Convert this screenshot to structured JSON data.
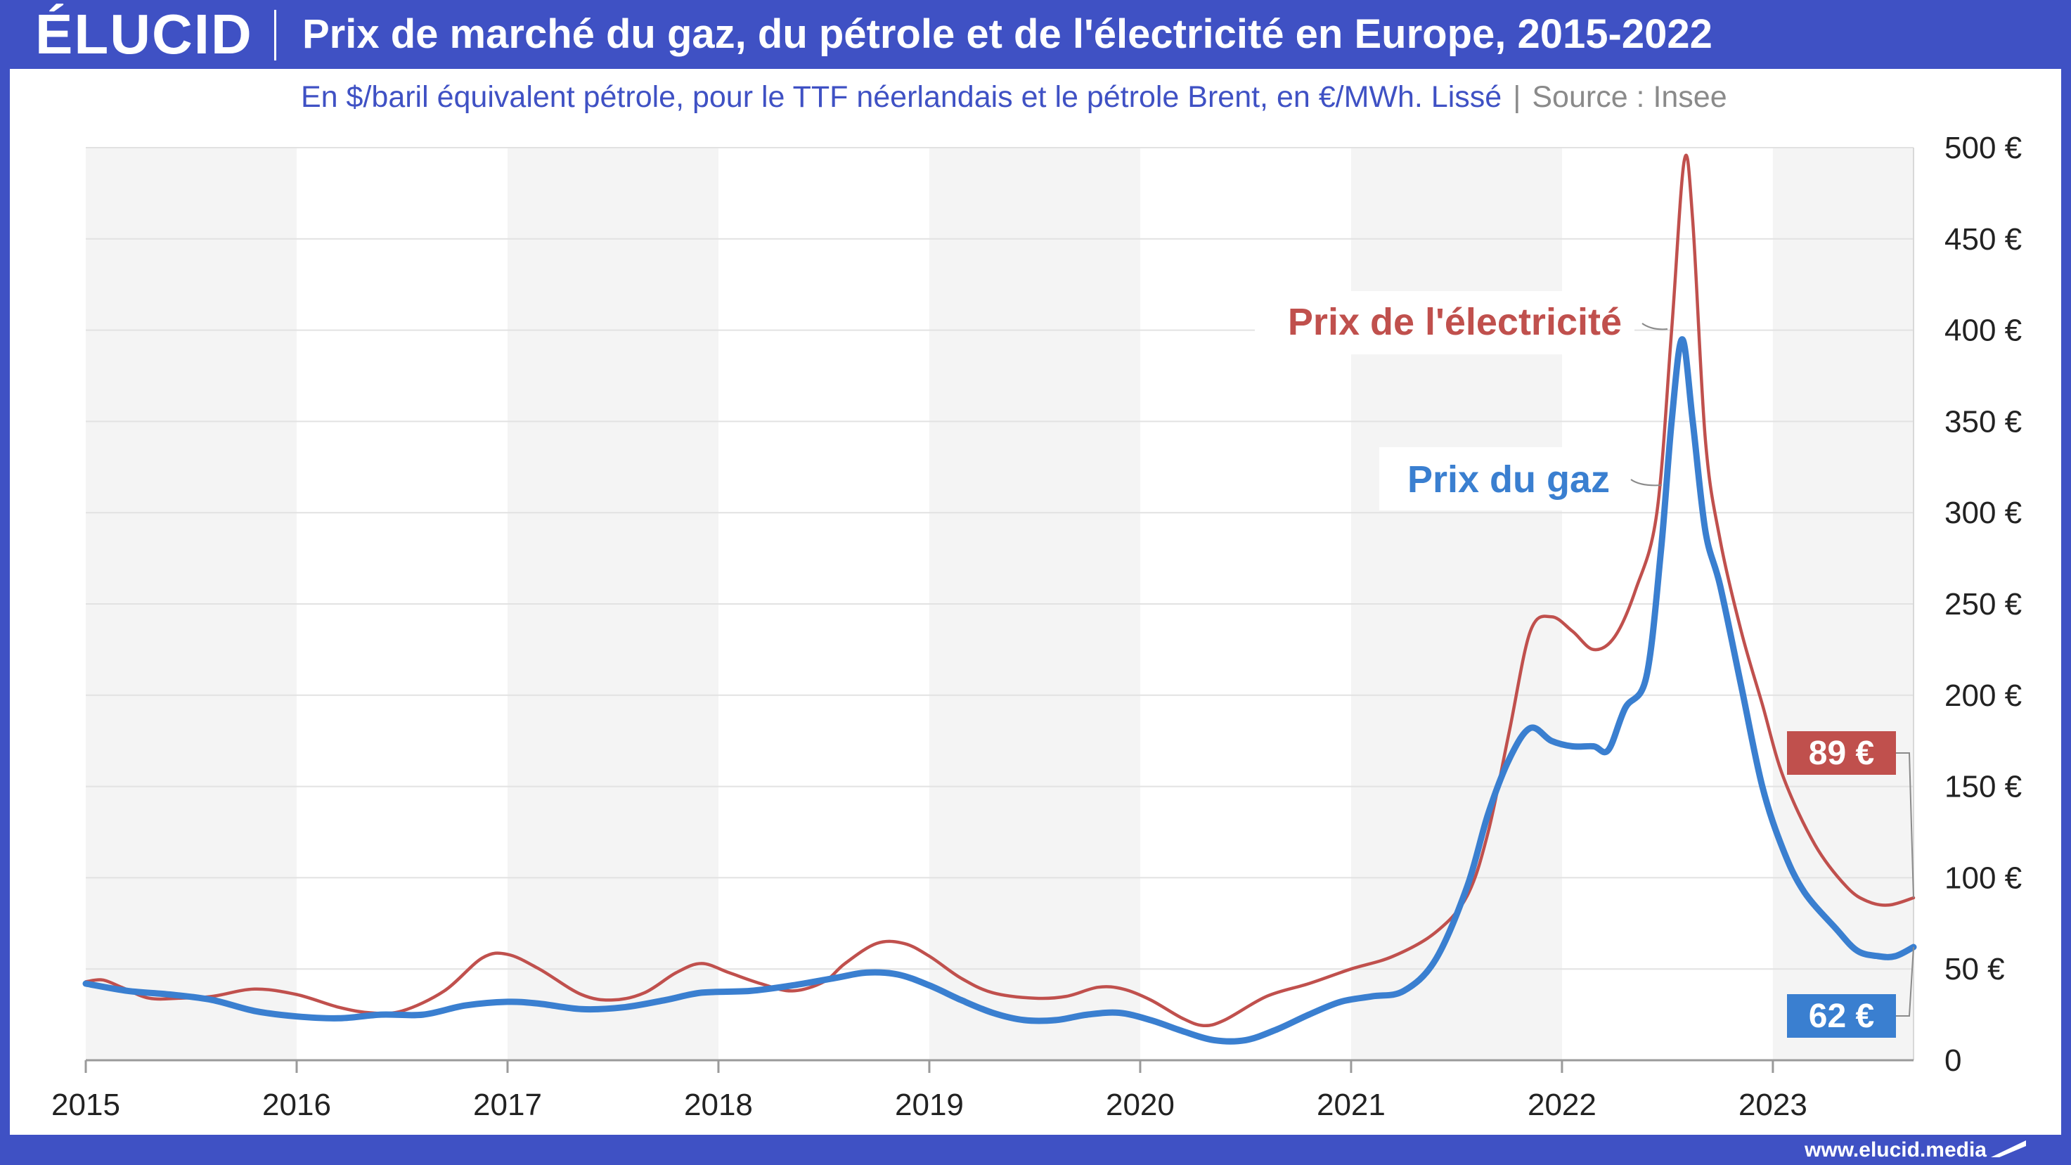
{
  "header": {
    "logo": "ÉLUCID",
    "title": "Prix de marché du gaz, du pétrole et de l'électricité en Europe, 2015-2022"
  },
  "subtitle": {
    "text": "En $/baril équivalent pétrole, pour le TTF néerlandais et le pétrole Brent, en €/MWh. Lissé",
    "separator": "|",
    "source": "Source : Insee"
  },
  "footer": {
    "url": "www.elucid.media"
  },
  "colors": {
    "brand": "#3f51c4",
    "electricity": "#c0504d",
    "gas": "#3a7fd0",
    "band": "#f4f4f4",
    "grid": "#e2e2e2"
  },
  "chart_data": {
    "type": "line",
    "title": "Prix de marché du gaz, du pétrole et de l'électricité en Europe, 2015-2022",
    "subtitle": "En $/baril équivalent pétrole, pour le TTF néerlandais et le pétrole Brent, en €/MWh. Lissé",
    "xlabel": "",
    "ylabel": "",
    "x_ticks": [
      "2015",
      "2016",
      "2017",
      "2018",
      "2019",
      "2020",
      "2021",
      "2022",
      "2023"
    ],
    "y_ticks": [
      "500 €",
      "450 €",
      "400 €",
      "350 €",
      "300 €",
      "250 €",
      "200 €",
      "150 €",
      "100 €",
      "50 €",
      "0"
    ],
    "xlim": [
      2015.0,
      2023.667
    ],
    "ylim": [
      0,
      500
    ],
    "grid": "horizontal",
    "shaded_years": [
      2015,
      2017,
      2019,
      2021,
      2023
    ],
    "series": [
      {
        "name": "Prix de l'électricité",
        "end_value_label": "89 €",
        "points": [
          [
            2015.0,
            43
          ],
          [
            2015.08,
            44
          ],
          [
            2015.17,
            40
          ],
          [
            2015.3,
            34
          ],
          [
            2015.45,
            34
          ],
          [
            2015.6,
            35
          ],
          [
            2015.8,
            39
          ],
          [
            2016.0,
            36
          ],
          [
            2016.2,
            29
          ],
          [
            2016.35,
            26
          ],
          [
            2016.5,
            27
          ],
          [
            2016.7,
            38
          ],
          [
            2016.88,
            56
          ],
          [
            2017.0,
            58
          ],
          [
            2017.15,
            50
          ],
          [
            2017.35,
            36
          ],
          [
            2017.5,
            33
          ],
          [
            2017.65,
            37
          ],
          [
            2017.8,
            48
          ],
          [
            2017.92,
            53
          ],
          [
            2018.05,
            48
          ],
          [
            2018.2,
            42
          ],
          [
            2018.35,
            38
          ],
          [
            2018.5,
            43
          ],
          [
            2018.6,
            53
          ],
          [
            2018.75,
            64
          ],
          [
            2018.88,
            64
          ],
          [
            2019.0,
            57
          ],
          [
            2019.15,
            45
          ],
          [
            2019.3,
            37
          ],
          [
            2019.5,
            34
          ],
          [
            2019.65,
            35
          ],
          [
            2019.8,
            40
          ],
          [
            2019.92,
            39
          ],
          [
            2020.05,
            33
          ],
          [
            2020.2,
            23
          ],
          [
            2020.3,
            19
          ],
          [
            2020.4,
            22
          ],
          [
            2020.6,
            35
          ],
          [
            2020.8,
            42
          ],
          [
            2021.0,
            50
          ],
          [
            2021.2,
            57
          ],
          [
            2021.4,
            70
          ],
          [
            2021.55,
            90
          ],
          [
            2021.65,
            125
          ],
          [
            2021.75,
            180
          ],
          [
            2021.85,
            235
          ],
          [
            2021.95,
            243
          ],
          [
            2022.05,
            235
          ],
          [
            2022.15,
            225
          ],
          [
            2022.25,
            232
          ],
          [
            2022.35,
            258
          ],
          [
            2022.45,
            300
          ],
          [
            2022.52,
            400
          ],
          [
            2022.58,
            493
          ],
          [
            2022.62,
            460
          ],
          [
            2022.68,
            340
          ],
          [
            2022.75,
            285
          ],
          [
            2022.85,
            235
          ],
          [
            2022.95,
            195
          ],
          [
            2023.05,
            155
          ],
          [
            2023.2,
            118
          ],
          [
            2023.35,
            95
          ],
          [
            2023.45,
            87
          ],
          [
            2023.55,
            85
          ],
          [
            2023.667,
            89
          ]
        ]
      },
      {
        "name": "Prix du gaz",
        "end_value_label": "62 €",
        "points": [
          [
            2015.0,
            42
          ],
          [
            2015.2,
            38
          ],
          [
            2015.4,
            36
          ],
          [
            2015.6,
            33
          ],
          [
            2015.8,
            27
          ],
          [
            2016.0,
            24
          ],
          [
            2016.2,
            23
          ],
          [
            2016.4,
            25
          ],
          [
            2016.6,
            25
          ],
          [
            2016.8,
            30
          ],
          [
            2017.0,
            32
          ],
          [
            2017.15,
            31
          ],
          [
            2017.35,
            28
          ],
          [
            2017.55,
            29
          ],
          [
            2017.75,
            33
          ],
          [
            2017.92,
            37
          ],
          [
            2018.15,
            38
          ],
          [
            2018.35,
            41
          ],
          [
            2018.55,
            45
          ],
          [
            2018.7,
            48
          ],
          [
            2018.85,
            47
          ],
          [
            2019.0,
            41
          ],
          [
            2019.15,
            33
          ],
          [
            2019.3,
            26
          ],
          [
            2019.45,
            22
          ],
          [
            2019.6,
            22
          ],
          [
            2019.75,
            25
          ],
          [
            2019.9,
            26
          ],
          [
            2020.05,
            22
          ],
          [
            2020.2,
            16
          ],
          [
            2020.35,
            11
          ],
          [
            2020.5,
            11
          ],
          [
            2020.65,
            17
          ],
          [
            2020.8,
            25
          ],
          [
            2020.95,
            32
          ],
          [
            2021.1,
            35
          ],
          [
            2021.25,
            38
          ],
          [
            2021.4,
            55
          ],
          [
            2021.55,
            95
          ],
          [
            2021.65,
            135
          ],
          [
            2021.75,
            165
          ],
          [
            2021.85,
            182
          ],
          [
            2021.95,
            175
          ],
          [
            2022.05,
            172
          ],
          [
            2022.15,
            172
          ],
          [
            2022.22,
            170
          ],
          [
            2022.3,
            193
          ],
          [
            2022.4,
            210
          ],
          [
            2022.47,
            280
          ],
          [
            2022.52,
            350
          ],
          [
            2022.57,
            395
          ],
          [
            2022.62,
            350
          ],
          [
            2022.68,
            290
          ],
          [
            2022.75,
            260
          ],
          [
            2022.85,
            205
          ],
          [
            2022.95,
            150
          ],
          [
            2023.05,
            115
          ],
          [
            2023.15,
            92
          ],
          [
            2023.3,
            72
          ],
          [
            2023.4,
            60
          ],
          [
            2023.5,
            57
          ],
          [
            2023.58,
            57
          ],
          [
            2023.667,
            62
          ]
        ]
      }
    ]
  }
}
